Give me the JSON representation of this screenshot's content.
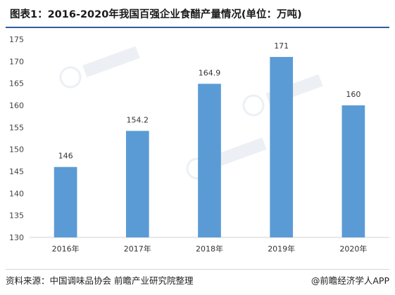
{
  "chart_data": {
    "type": "bar",
    "title": "图表1：2016-2020年我国百强企业食醋产量情况(单位：万吨)",
    "categories": [
      "2016年",
      "2017年",
      "2018年",
      "2019年",
      "2020年"
    ],
    "values": [
      146,
      154.2,
      164.9,
      171,
      160
    ],
    "value_labels": [
      "146",
      "154.2",
      "164.9",
      "171",
      "160"
    ],
    "ylim": [
      130,
      175
    ],
    "yticks": [
      130,
      135,
      140,
      145,
      150,
      155,
      160,
      165,
      170,
      175
    ],
    "xlabel": "",
    "ylabel": "",
    "grid": false,
    "bar_color": "#5b9bd5"
  },
  "footer": {
    "source": "资料来源：中国调味品协会 前瞻产业研究院整理",
    "brand": "@前瞻经济学人APP"
  }
}
